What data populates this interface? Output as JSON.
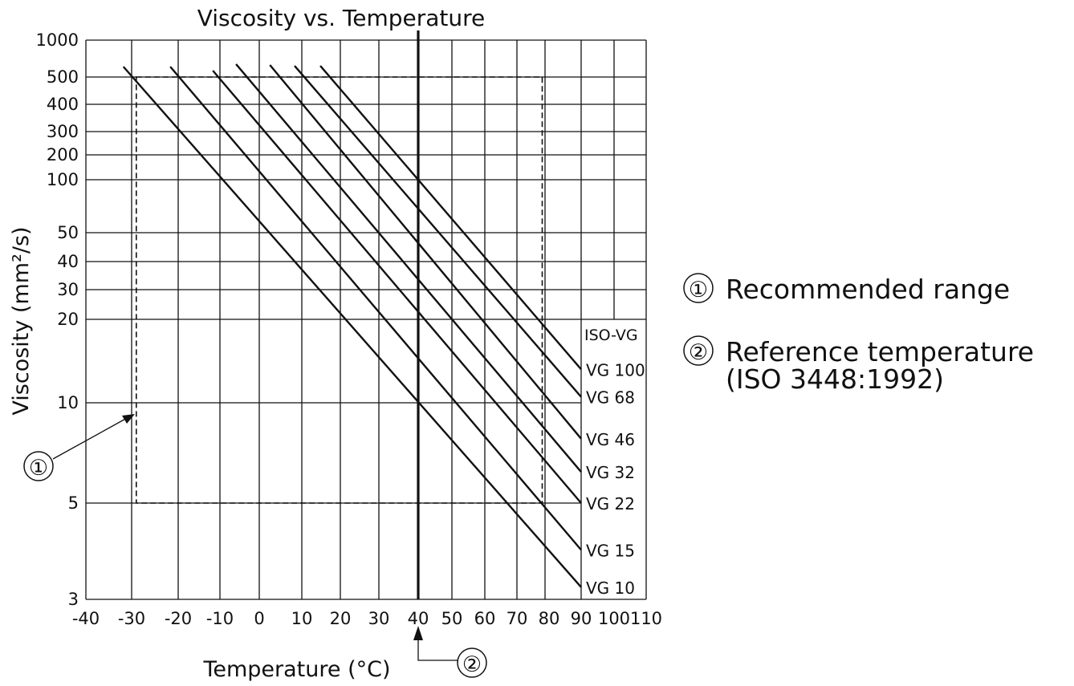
{
  "chart_data": {
    "type": "line",
    "title": "Viscosity vs. Temperature",
    "xlabel": "Temperature (°C)",
    "ylabel": "Viscosity (mm²/s)",
    "x_ticks": [
      -40,
      -30,
      -20,
      -10,
      0,
      10,
      20,
      30,
      40,
      50,
      60,
      70,
      80,
      90,
      100,
      110
    ],
    "y_ticks": [
      3,
      5,
      10,
      20,
      30,
      40,
      50,
      100,
      200,
      300,
      400,
      500,
      1000
    ],
    "xlim": [
      -40,
      110
    ],
    "ylim": [
      3,
      1000
    ],
    "y_scale": "log-log (ASTM)",
    "grid": true,
    "legend_title": "ISO-VG",
    "series": [
      {
        "name": "VG 100",
        "points": [
          [
            14.8,
            617
          ],
          [
            90,
            13.2
          ]
        ]
      },
      {
        "name": "VG 68",
        "points": [
          [
            8.3,
            617
          ],
          [
            90,
            10.5
          ]
        ]
      },
      {
        "name": "VG 46",
        "points": [
          [
            2.5,
            627
          ],
          [
            90,
            7.8
          ]
        ]
      },
      {
        "name": "VG 32",
        "points": [
          [
            -5.9,
            637
          ],
          [
            90,
            6.2
          ]
        ]
      },
      {
        "name": "VG 22",
        "points": [
          [
            -11.7,
            564
          ],
          [
            90,
            5.0
          ]
        ]
      },
      {
        "name": "VG 15",
        "points": [
          [
            -21.7,
            607
          ],
          [
            90,
            3.9
          ]
        ]
      },
      {
        "name": "VG 10",
        "points": [
          [
            -31.8,
            607
          ],
          [
            90,
            3.2
          ]
        ]
      }
    ],
    "recommended_range": {
      "temperature": [
        -29,
        79
      ],
      "viscosity": [
        5,
        500
      ]
    },
    "reference_temperature": 40,
    "annotations": [
      {
        "marker": "①",
        "text": "Recommended range"
      },
      {
        "marker": "②",
        "text": "Reference temperature",
        "text2": "(ISO 3448:1992)"
      }
    ]
  }
}
